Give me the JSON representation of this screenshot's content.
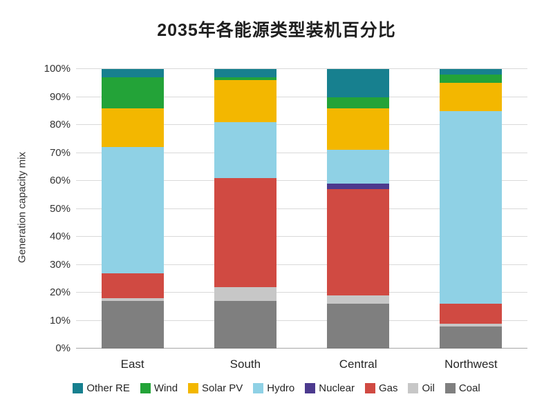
{
  "title": "2035年各能源类型装机百分比",
  "chart_data": {
    "type": "bar",
    "stacked": true,
    "title": "2035年各能源类型装机百分比",
    "ylabel": "Generation capacity mix",
    "xlabel": "",
    "ylim": [
      0,
      100
    ],
    "grid": true,
    "legend_position": "bottom",
    "categories": [
      "East",
      "South",
      "Central",
      "Northwest"
    ],
    "ytick_labels": [
      "0%",
      "10%",
      "20%",
      "30%",
      "40%",
      "50%",
      "60%",
      "70%",
      "80%",
      "90%",
      "100%"
    ],
    "series": [
      {
        "name": "Coal",
        "color": "#7f7f7f",
        "values": [
          17,
          17,
          16,
          8
        ]
      },
      {
        "name": "Oil",
        "color": "#c7c7c7",
        "values": [
          1,
          5,
          3,
          1
        ]
      },
      {
        "name": "Gas",
        "color": "#d04a42",
        "values": [
          9,
          39,
          38,
          7
        ]
      },
      {
        "name": "Nuclear",
        "color": "#4c3a8e",
        "values": [
          0,
          0,
          2,
          0
        ]
      },
      {
        "name": "Hydro",
        "color": "#8fd1e5",
        "values": [
          45,
          20,
          12,
          69
        ]
      },
      {
        "name": "Solar PV",
        "color": "#f3b700",
        "values": [
          14,
          15,
          15,
          10
        ]
      },
      {
        "name": "Wind",
        "color": "#23a338",
        "values": [
          11,
          1,
          4,
          3
        ]
      },
      {
        "name": "Other RE",
        "color": "#17808f",
        "values": [
          3,
          3,
          10,
          2
        ]
      }
    ],
    "legend": [
      "Other RE",
      "Wind",
      "Solar PV",
      "Hydro",
      "Nuclear",
      "Gas",
      "Oil",
      "Coal"
    ]
  }
}
